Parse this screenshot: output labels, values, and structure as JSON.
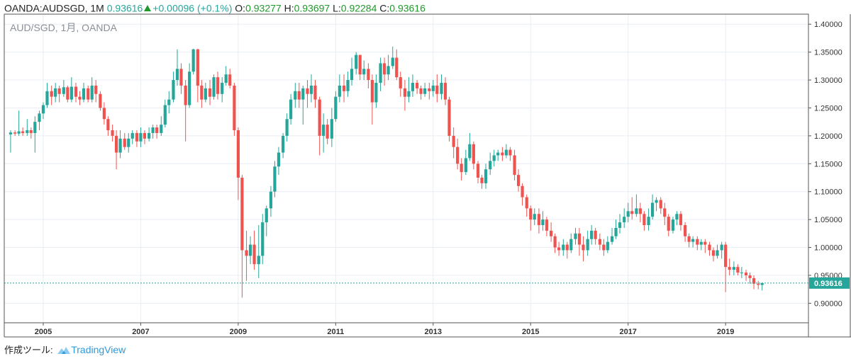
{
  "header": {
    "symbol": "OANDA:AUDSGD, 1M",
    "last": "0.93616",
    "change": "+0.00096 (+0.1%)",
    "o_label": "O:",
    "o_value": "0.93277",
    "h_label": "H:",
    "h_value": "0.93697",
    "l_label": "L:",
    "l_value": "0.92284",
    "c_label": "C:",
    "c_value": "0.93616"
  },
  "watermark": "AUD/SGD, 1月, OANDA",
  "footer": {
    "prefix": "作成ツール: ",
    "brand": "TradingView"
  },
  "colors": {
    "up": "#26a69a",
    "down": "#ef5350",
    "price_line": "#26a69a",
    "grid": "#e8eef3",
    "axis": "#555555"
  },
  "chart_data": {
    "type": "candlestick",
    "title": "AUD/SGD, 1月, OANDA",
    "ylim": [
      0.865,
      1.418
    ],
    "yticks": [
      "1.40000",
      "1.35000",
      "1.30000",
      "1.25000",
      "1.20000",
      "1.15000",
      "1.10000",
      "1.05000",
      "1.00000",
      "0.95000",
      "0.90000"
    ],
    "xticks": [
      "2005",
      "2007",
      "2009",
      "2011",
      "2013",
      "2015",
      "2017",
      "2019"
    ],
    "xlim": [
      2004.2,
      2020.7
    ],
    "last_price": 0.93616,
    "last_price_label": "0.93616",
    "candles": [
      [
        2004.33,
        1.2025,
        1.206,
        1.21,
        1.17
      ],
      [
        2004.42,
        1.206,
        1.204,
        1.21,
        1.2
      ],
      [
        2004.5,
        1.204,
        1.208,
        1.245,
        1.2
      ],
      [
        2004.58,
        1.208,
        1.205,
        1.215,
        1.2
      ],
      [
        2004.67,
        1.205,
        1.21,
        1.23,
        1.2
      ],
      [
        2004.75,
        1.21,
        1.205,
        1.215,
        1.195
      ],
      [
        2004.83,
        1.205,
        1.225,
        1.235,
        1.17
      ],
      [
        2004.92,
        1.225,
        1.24,
        1.245,
        1.21
      ],
      [
        2005.0,
        1.24,
        1.255,
        1.26,
        1.23
      ],
      [
        2005.08,
        1.255,
        1.28,
        1.295,
        1.25
      ],
      [
        2005.17,
        1.28,
        1.27,
        1.29,
        1.255
      ],
      [
        2005.25,
        1.27,
        1.285,
        1.295,
        1.26
      ],
      [
        2005.33,
        1.285,
        1.275,
        1.29,
        1.26
      ],
      [
        2005.42,
        1.275,
        1.287,
        1.3,
        1.27
      ],
      [
        2005.5,
        1.287,
        1.265,
        1.29,
        1.26
      ],
      [
        2005.58,
        1.265,
        1.288,
        1.305,
        1.26
      ],
      [
        2005.67,
        1.288,
        1.27,
        1.295,
        1.26
      ],
      [
        2005.75,
        1.27,
        1.265,
        1.28,
        1.255
      ],
      [
        2005.83,
        1.265,
        1.285,
        1.295,
        1.26
      ],
      [
        2005.92,
        1.285,
        1.265,
        1.29,
        1.26
      ],
      [
        2006.0,
        1.265,
        1.29,
        1.305,
        1.26
      ],
      [
        2006.08,
        1.29,
        1.275,
        1.3,
        1.26
      ],
      [
        2006.17,
        1.275,
        1.25,
        1.28,
        1.245
      ],
      [
        2006.25,
        1.25,
        1.23,
        1.26,
        1.22
      ],
      [
        2006.33,
        1.23,
        1.21,
        1.235,
        1.2
      ],
      [
        2006.42,
        1.21,
        1.2,
        1.22,
        1.19
      ],
      [
        2006.5,
        1.2,
        1.17,
        1.21,
        1.14
      ],
      [
        2006.58,
        1.17,
        1.195,
        1.21,
        1.16
      ],
      [
        2006.67,
        1.195,
        1.18,
        1.205,
        1.175
      ],
      [
        2006.75,
        1.18,
        1.195,
        1.205,
        1.17
      ],
      [
        2006.83,
        1.195,
        1.205,
        1.21,
        1.185
      ],
      [
        2006.92,
        1.205,
        1.19,
        1.21,
        1.18
      ],
      [
        2007.0,
        1.19,
        1.205,
        1.215,
        1.18
      ],
      [
        2007.08,
        1.205,
        1.195,
        1.21,
        1.185
      ],
      [
        2007.17,
        1.195,
        1.205,
        1.215,
        1.19
      ],
      [
        2007.25,
        1.205,
        1.215,
        1.22,
        1.195
      ],
      [
        2007.33,
        1.215,
        1.205,
        1.22,
        1.195
      ],
      [
        2007.42,
        1.205,
        1.22,
        1.235,
        1.2
      ],
      [
        2007.5,
        1.22,
        1.255,
        1.265,
        1.215
      ],
      [
        2007.58,
        1.255,
        1.265,
        1.28,
        1.24
      ],
      [
        2007.67,
        1.265,
        1.3,
        1.315,
        1.26
      ],
      [
        2007.75,
        1.3,
        1.32,
        1.355,
        1.29
      ],
      [
        2007.83,
        1.32,
        1.29,
        1.33,
        1.275
      ],
      [
        2007.92,
        1.29,
        1.255,
        1.3,
        1.19
      ],
      [
        2008.0,
        1.255,
        1.315,
        1.33,
        1.25
      ],
      [
        2008.08,
        1.315,
        1.355,
        1.356,
        1.31
      ],
      [
        2008.17,
        1.355,
        1.29,
        1.356,
        1.26
      ],
      [
        2008.25,
        1.29,
        1.265,
        1.3,
        1.25
      ],
      [
        2008.33,
        1.265,
        1.285,
        1.295,
        1.26
      ],
      [
        2008.42,
        1.285,
        1.27,
        1.3,
        1.255
      ],
      [
        2008.5,
        1.27,
        1.305,
        1.31,
        1.265
      ],
      [
        2008.58,
        1.305,
        1.275,
        1.315,
        1.265
      ],
      [
        2008.67,
        1.275,
        1.295,
        1.305,
        1.26
      ],
      [
        2008.75,
        1.295,
        1.31,
        1.325,
        1.29
      ],
      [
        2008.83,
        1.31,
        1.29,
        1.32,
        1.285
      ],
      [
        2008.92,
        1.29,
        1.21,
        1.295,
        1.2
      ],
      [
        2009.0,
        1.21,
        1.125,
        1.215,
        1.085
      ],
      [
        2009.08,
        1.125,
        0.995,
        1.13,
        0.91
      ],
      [
        2009.17,
        0.995,
        0.985,
        1.03,
        0.94
      ],
      [
        2009.25,
        0.985,
        1.005,
        1.02,
        0.97
      ],
      [
        2009.33,
        1.005,
        0.97,
        1.03,
        0.96
      ],
      [
        2009.42,
        0.97,
        0.985,
        1.04,
        0.945
      ],
      [
        2009.5,
        0.985,
        1.045,
        1.06,
        0.97
      ],
      [
        2009.58,
        1.045,
        1.07,
        1.075,
        1.02
      ],
      [
        2009.67,
        1.07,
        1.1,
        1.11,
        1.055
      ],
      [
        2009.75,
        1.1,
        1.145,
        1.155,
        1.09
      ],
      [
        2009.83,
        1.145,
        1.17,
        1.18,
        1.13
      ],
      [
        2009.92,
        1.17,
        1.2,
        1.205,
        1.16
      ],
      [
        2010.0,
        1.2,
        1.23,
        1.24,
        1.19
      ],
      [
        2010.08,
        1.23,
        1.265,
        1.275,
        1.22
      ],
      [
        2010.17,
        1.265,
        1.28,
        1.295,
        1.25
      ],
      [
        2010.25,
        1.28,
        1.265,
        1.295,
        1.25
      ],
      [
        2010.33,
        1.265,
        1.285,
        1.29,
        1.22
      ],
      [
        2010.42,
        1.285,
        1.275,
        1.3,
        1.25
      ],
      [
        2010.5,
        1.275,
        1.29,
        1.31,
        1.26
      ],
      [
        2010.58,
        1.29,
        1.265,
        1.3,
        1.25
      ],
      [
        2010.67,
        1.265,
        1.2,
        1.27,
        1.165
      ],
      [
        2010.75,
        1.2,
        1.22,
        1.24,
        1.17
      ],
      [
        2010.83,
        1.22,
        1.195,
        1.23,
        1.185
      ],
      [
        2010.92,
        1.195,
        1.23,
        1.25,
        1.18
      ],
      [
        2011.0,
        1.23,
        1.27,
        1.28,
        1.225
      ],
      [
        2011.08,
        1.27,
        1.29,
        1.31,
        1.26
      ],
      [
        2011.17,
        1.29,
        1.28,
        1.31,
        1.26
      ],
      [
        2011.25,
        1.28,
        1.3,
        1.315,
        1.27
      ],
      [
        2011.33,
        1.3,
        1.32,
        1.34,
        1.29
      ],
      [
        2011.42,
        1.32,
        1.345,
        1.35,
        1.31
      ],
      [
        2011.5,
        1.345,
        1.31,
        1.345,
        1.3
      ],
      [
        2011.58,
        1.31,
        1.32,
        1.335,
        1.3
      ],
      [
        2011.67,
        1.32,
        1.3,
        1.33,
        1.285
      ],
      [
        2011.75,
        1.3,
        1.26,
        1.31,
        1.22
      ],
      [
        2011.83,
        1.26,
        1.295,
        1.31,
        1.25
      ],
      [
        2011.92,
        1.295,
        1.33,
        1.34,
        1.28
      ],
      [
        2012.0,
        1.33,
        1.31,
        1.34,
        1.29
      ],
      [
        2012.08,
        1.31,
        1.325,
        1.345,
        1.3
      ],
      [
        2012.17,
        1.325,
        1.34,
        1.36,
        1.32
      ],
      [
        2012.25,
        1.34,
        1.305,
        1.355,
        1.3
      ],
      [
        2012.33,
        1.305,
        1.285,
        1.315,
        1.27
      ],
      [
        2012.42,
        1.285,
        1.27,
        1.3,
        1.245
      ],
      [
        2012.5,
        1.27,
        1.28,
        1.305,
        1.26
      ],
      [
        2012.58,
        1.28,
        1.295,
        1.31,
        1.27
      ],
      [
        2012.67,
        1.295,
        1.285,
        1.3,
        1.275
      ],
      [
        2012.75,
        1.285,
        1.275,
        1.29,
        1.265
      ],
      [
        2012.83,
        1.275,
        1.285,
        1.295,
        1.27
      ],
      [
        2012.92,
        1.285,
        1.28,
        1.295,
        1.265
      ],
      [
        2013.0,
        1.28,
        1.29,
        1.3,
        1.27
      ],
      [
        2013.08,
        1.29,
        1.275,
        1.31,
        1.26
      ],
      [
        2013.17,
        1.275,
        1.295,
        1.31,
        1.265
      ],
      [
        2013.25,
        1.295,
        1.265,
        1.305,
        1.255
      ],
      [
        2013.33,
        1.265,
        1.2,
        1.27,
        1.19
      ],
      [
        2013.42,
        1.2,
        1.18,
        1.215,
        1.16
      ],
      [
        2013.5,
        1.18,
        1.15,
        1.195,
        1.14
      ],
      [
        2013.58,
        1.15,
        1.135,
        1.16,
        1.12
      ],
      [
        2013.67,
        1.135,
        1.16,
        1.175,
        1.13
      ],
      [
        2013.75,
        1.16,
        1.185,
        1.205,
        1.155
      ],
      [
        2013.83,
        1.185,
        1.15,
        1.19,
        1.14
      ],
      [
        2013.92,
        1.15,
        1.125,
        1.155,
        1.115
      ],
      [
        2014.0,
        1.125,
        1.115,
        1.13,
        1.105
      ],
      [
        2014.08,
        1.115,
        1.14,
        1.15,
        1.105
      ],
      [
        2014.17,
        1.14,
        1.155,
        1.17,
        1.13
      ],
      [
        2014.25,
        1.155,
        1.165,
        1.175,
        1.145
      ],
      [
        2014.33,
        1.165,
        1.17,
        1.175,
        1.155
      ],
      [
        2014.42,
        1.17,
        1.165,
        1.18,
        1.155
      ],
      [
        2014.5,
        1.165,
        1.175,
        1.185,
        1.16
      ],
      [
        2014.58,
        1.175,
        1.165,
        1.18,
        1.155
      ],
      [
        2014.67,
        1.165,
        1.13,
        1.175,
        1.12
      ],
      [
        2014.75,
        1.13,
        1.11,
        1.14,
        1.1
      ],
      [
        2014.83,
        1.11,
        1.09,
        1.115,
        1.075
      ],
      [
        2014.92,
        1.09,
        1.07,
        1.095,
        1.055
      ],
      [
        2015.0,
        1.07,
        1.05,
        1.075,
        1.03
      ],
      [
        2015.08,
        1.05,
        1.06,
        1.07,
        1.04
      ],
      [
        2015.17,
        1.06,
        1.04,
        1.07,
        1.025
      ],
      [
        2015.25,
        1.04,
        1.05,
        1.065,
        1.03
      ],
      [
        2015.33,
        1.05,
        1.03,
        1.055,
        1.02
      ],
      [
        2015.42,
        1.03,
        1.02,
        1.045,
        1.01
      ],
      [
        2015.5,
        1.02,
        1.0,
        1.025,
        0.99
      ],
      [
        2015.58,
        1.0,
        0.995,
        1.01,
        0.985
      ],
      [
        2015.67,
        0.995,
        1.005,
        1.015,
        0.985
      ],
      [
        2015.75,
        1.005,
        0.995,
        1.01,
        0.98
      ],
      [
        2015.83,
        0.995,
        1.015,
        1.025,
        0.99
      ],
      [
        2015.92,
        1.015,
        1.025,
        1.035,
        1.005
      ],
      [
        2016.0,
        1.025,
        1.005,
        1.035,
        0.985
      ],
      [
        2016.08,
        1.005,
        0.995,
        1.02,
        0.975
      ],
      [
        2016.17,
        0.995,
        1.015,
        1.03,
        0.985
      ],
      [
        2016.25,
        1.015,
        1.03,
        1.04,
        1.005
      ],
      [
        2016.33,
        1.03,
        1.015,
        1.035,
        1.005
      ],
      [
        2016.42,
        1.015,
        1.005,
        1.025,
        0.995
      ],
      [
        2016.5,
        1.005,
        0.995,
        1.015,
        0.985
      ],
      [
        2016.58,
        0.995,
        1.01,
        1.02,
        0.99
      ],
      [
        2016.67,
        1.01,
        1.02,
        1.035,
        1.005
      ],
      [
        2016.75,
        1.02,
        1.035,
        1.05,
        1.015
      ],
      [
        2016.83,
        1.035,
        1.045,
        1.06,
        1.025
      ],
      [
        2016.92,
        1.045,
        1.055,
        1.07,
        1.035
      ],
      [
        2017.0,
        1.055,
        1.065,
        1.08,
        1.045
      ],
      [
        2017.08,
        1.065,
        1.06,
        1.09,
        1.05
      ],
      [
        2017.17,
        1.06,
        1.07,
        1.095,
        1.055
      ],
      [
        2017.25,
        1.07,
        1.06,
        1.08,
        1.045
      ],
      [
        2017.33,
        1.06,
        1.04,
        1.065,
        1.03
      ],
      [
        2017.42,
        1.04,
        1.055,
        1.07,
        1.03
      ],
      [
        2017.5,
        1.055,
        1.08,
        1.095,
        1.05
      ],
      [
        2017.58,
        1.08,
        1.085,
        1.09,
        1.065
      ],
      [
        2017.67,
        1.085,
        1.07,
        1.09,
        1.06
      ],
      [
        2017.75,
        1.07,
        1.055,
        1.08,
        1.04
      ],
      [
        2017.83,
        1.055,
        1.03,
        1.06,
        1.02
      ],
      [
        2017.92,
        1.03,
        1.05,
        1.055,
        1.025
      ],
      [
        2018.0,
        1.05,
        1.06,
        1.065,
        1.04
      ],
      [
        2018.08,
        1.06,
        1.04,
        1.065,
        1.03
      ],
      [
        2018.17,
        1.04,
        1.02,
        1.045,
        1.01
      ],
      [
        2018.25,
        1.02,
        1.01,
        1.025,
        1.0
      ],
      [
        2018.33,
        1.01,
        1.015,
        1.02,
        1.0
      ],
      [
        2018.42,
        1.015,
        1.005,
        1.02,
        0.995
      ],
      [
        2018.5,
        1.005,
        1.01,
        1.015,
        0.995
      ],
      [
        2018.58,
        1.01,
        1.005,
        1.015,
        0.99
      ],
      [
        2018.67,
        1.005,
        0.995,
        1.01,
        0.985
      ],
      [
        2018.75,
        0.995,
        0.985,
        1.0,
        0.975
      ],
      [
        2018.83,
        0.985,
        0.995,
        1.005,
        0.98
      ],
      [
        2018.92,
        0.995,
        1.005,
        1.01,
        0.98
      ],
      [
        2019.0,
        1.005,
        0.965,
        1.01,
        0.92
      ],
      [
        2019.08,
        0.965,
        0.96,
        0.98,
        0.95
      ],
      [
        2019.17,
        0.96,
        0.965,
        0.975,
        0.95
      ],
      [
        2019.25,
        0.965,
        0.955,
        0.97,
        0.95
      ],
      [
        2019.33,
        0.955,
        0.955,
        0.965,
        0.945
      ],
      [
        2019.42,
        0.955,
        0.95,
        0.96,
        0.94
      ],
      [
        2019.5,
        0.95,
        0.945,
        0.955,
        0.935
      ],
      [
        2019.58,
        0.945,
        0.935,
        0.95,
        0.925
      ],
      [
        2019.67,
        0.935,
        0.933,
        0.94,
        0.925
      ],
      [
        2019.75,
        0.93277,
        0.93616,
        0.93697,
        0.92284
      ]
    ]
  }
}
